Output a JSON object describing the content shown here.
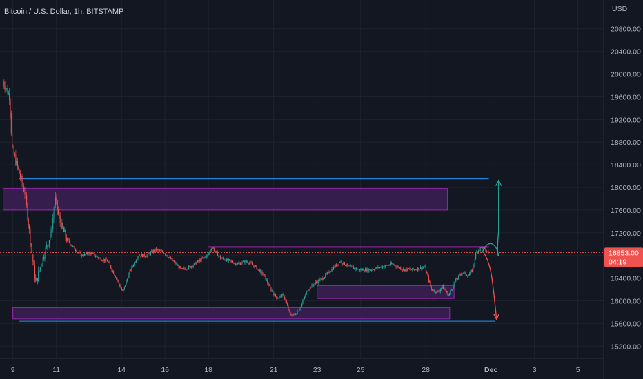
{
  "header": {
    "title": "Bitcoin / U.S. Dollar, 1h, BITSTAMP",
    "currency": "USD"
  },
  "price_tag": {
    "price": "16853.00",
    "countdown": "04:19",
    "color": "#ef5350"
  },
  "colors": {
    "background": "#131722",
    "grid": "#1e222d",
    "up": "#26a69a",
    "down": "#ef5350",
    "zone_fill": "#3c1f55",
    "zone_stroke": "#9c27b0",
    "hline": "#2196f3",
    "purple_line": "#9c27b0"
  },
  "chart_data": {
    "type": "candlestick",
    "title": "Bitcoin / U.S. Dollar, 1h, BITSTAMP",
    "ylabel": "USD",
    "ylim": [
      15050,
      21000
    ],
    "y_ticks": [
      15200,
      15600,
      16000,
      16400,
      16800,
      17200,
      17600,
      18000,
      18400,
      18800,
      19200,
      19600,
      20000,
      20400,
      20800
    ],
    "y_tick_labels": [
      "15200.00",
      "15600.00",
      "16000.00",
      "16400.00",
      "16800.00",
      "17200.00",
      "17600.00",
      "18000.00",
      "18400.00",
      "18800.00",
      "19200.00",
      "19600.00",
      "20000.00",
      "20400.00",
      "20800.00"
    ],
    "x_day_range": [
      8.55,
      32.6
    ],
    "x_ticks": [
      {
        "day": 9,
        "label": "9"
      },
      {
        "day": 11,
        "label": "11"
      },
      {
        "day": 14,
        "label": "14"
      },
      {
        "day": 16,
        "label": "16"
      },
      {
        "day": 18,
        "label": "18"
      },
      {
        "day": 21,
        "label": "21"
      },
      {
        "day": 23,
        "label": "23"
      },
      {
        "day": 25,
        "label": "25"
      },
      {
        "day": 28,
        "label": "28"
      },
      {
        "day": 31,
        "label": "Dec"
      },
      {
        "day": 33,
        "label": "3"
      },
      {
        "day": 35,
        "label": "5"
      }
    ],
    "last_price": 16853,
    "price_path": [
      [
        8.55,
        19900
      ],
      [
        8.9,
        19600
      ],
      [
        9.0,
        18700
      ],
      [
        9.3,
        18300
      ],
      [
        9.6,
        17900
      ],
      [
        9.9,
        16900
      ],
      [
        10.1,
        16300
      ],
      [
        10.3,
        16600
      ],
      [
        10.55,
        16900
      ],
      [
        10.8,
        17200
      ],
      [
        11.0,
        17800
      ],
      [
        11.2,
        17400
      ],
      [
        11.5,
        17100
      ],
      [
        11.8,
        16950
      ],
      [
        12.2,
        16800
      ],
      [
        12.6,
        16850
      ],
      [
        13.0,
        16750
      ],
      [
        13.4,
        16700
      ],
      [
        13.8,
        16400
      ],
      [
        14.1,
        16150
      ],
      [
        14.4,
        16500
      ],
      [
        14.8,
        16800
      ],
      [
        15.2,
        16800
      ],
      [
        15.6,
        16900
      ],
      [
        16.0,
        16850
      ],
      [
        16.4,
        16700
      ],
      [
        16.8,
        16550
      ],
      [
        17.2,
        16600
      ],
      [
        17.6,
        16700
      ],
      [
        18.0,
        16800
      ],
      [
        18.2,
        16950
      ],
      [
        18.6,
        16750
      ],
      [
        19.0,
        16700
      ],
      [
        19.4,
        16650
      ],
      [
        19.8,
        16700
      ],
      [
        20.2,
        16600
      ],
      [
        20.6,
        16450
      ],
      [
        20.9,
        16200
      ],
      [
        21.2,
        16050
      ],
      [
        21.5,
        16100
      ],
      [
        21.8,
        15750
      ],
      [
        22.0,
        15750
      ],
      [
        22.3,
        15900
      ],
      [
        22.6,
        16200
      ],
      [
        22.9,
        16300
      ],
      [
        23.3,
        16400
      ],
      [
        23.7,
        16550
      ],
      [
        24.1,
        16700
      ],
      [
        24.5,
        16600
      ],
      [
        25.0,
        16550
      ],
      [
        25.5,
        16550
      ],
      [
        26.0,
        16600
      ],
      [
        26.5,
        16650
      ],
      [
        27.0,
        16550
      ],
      [
        27.5,
        16550
      ],
      [
        28.0,
        16600
      ],
      [
        28.3,
        16200
      ],
      [
        28.6,
        16150
      ],
      [
        28.8,
        16250
      ],
      [
        29.1,
        16100
      ],
      [
        29.4,
        16350
      ],
      [
        29.7,
        16500
      ],
      [
        30.0,
        16450
      ],
      [
        30.2,
        16550
      ],
      [
        30.35,
        16850
      ],
      [
        30.6,
        16950
      ],
      [
        30.9,
        16853
      ]
    ],
    "drawings": {
      "resistance_line": {
        "from_day": 9.3,
        "to_day": 30.9,
        "price": 18150
      },
      "support_line": {
        "from_day": 9.3,
        "to_day": 31.2,
        "price": 15640
      },
      "purple_line": {
        "from_day": 18.0,
        "to_day": 30.9,
        "price": 16950
      },
      "zones": [
        {
          "from_day": 8.55,
          "to_day": 29.0,
          "low": 17600,
          "high": 17980
        },
        {
          "from_day": 9.0,
          "to_day": 29.1,
          "low": 15680,
          "high": 15880
        },
        {
          "from_day": 23.0,
          "to_day": 29.3,
          "low": 16040,
          "high": 16270
        }
      ],
      "bull_arrow_target": 18150,
      "bear_arrow_target": 15650
    }
  }
}
